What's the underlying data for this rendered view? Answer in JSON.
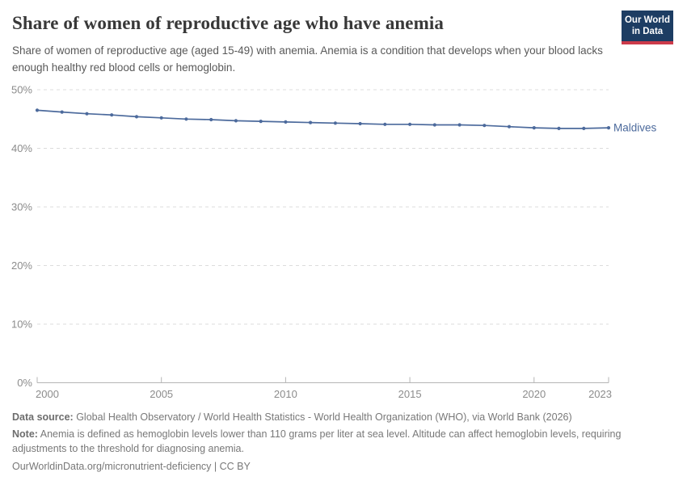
{
  "header": {
    "title": "Share of women of reproductive age who have anemia",
    "subtitle": "Share of women of reproductive age (aged 15-49) with anemia. Anemia is a condition that develops when your blood lacks enough healthy red blood cells or hemoglobin."
  },
  "logo": {
    "line1": "Our World",
    "line2": "in Data",
    "bg_color": "#1d3d63",
    "bar_color": "#cc3b4a"
  },
  "chart_data": {
    "type": "line",
    "title": "Share of women of reproductive age who have anemia",
    "unit": "%",
    "x": [
      2000,
      2001,
      2002,
      2003,
      2004,
      2005,
      2006,
      2007,
      2008,
      2009,
      2010,
      2011,
      2012,
      2013,
      2014,
      2015,
      2016,
      2017,
      2018,
      2019,
      2020,
      2021,
      2022,
      2023
    ],
    "series": [
      {
        "name": "Maldives",
        "color": "#4C6A9C",
        "values": [
          46.5,
          46.2,
          45.9,
          45.7,
          45.4,
          45.2,
          45.0,
          44.9,
          44.7,
          44.6,
          44.5,
          44.4,
          44.3,
          44.2,
          44.1,
          44.1,
          44.0,
          44.0,
          43.9,
          43.7,
          43.5,
          43.4,
          43.4,
          43.5
        ]
      }
    ],
    "xlabel": "",
    "ylabel": "",
    "ylim": [
      0,
      50
    ],
    "yticks": [
      0,
      10,
      20,
      30,
      40,
      50
    ],
    "ytick_suffix": "%",
    "xticks": [
      2000,
      2005,
      2010,
      2015,
      2020,
      2023
    ],
    "grid": "horizontal-dashed",
    "legend_position": "end-of-line-label"
  },
  "colors": {
    "line": "#4C6A9C",
    "gridline": "#dcdcdc",
    "axis": "#b5b5b5",
    "tick_label": "#8c8c8c",
    "title": "#383838",
    "subtitle": "#595959",
    "footer": "#787878"
  },
  "footer": {
    "data_source_label": "Data source:",
    "data_source_text": " Global Health Observatory / World Health Statistics - World Health Organization (WHO), via World Bank (2026)",
    "note_label": "Note:",
    "note_text": " Anemia is defined as hemoglobin levels lower than 110 grams per liter at sea level. Altitude can affect hemoglobin levels, requiring adjustments to the threshold for diagnosing anemia.",
    "license": "OurWorldinData.org/micronutrient-deficiency | CC BY"
  }
}
